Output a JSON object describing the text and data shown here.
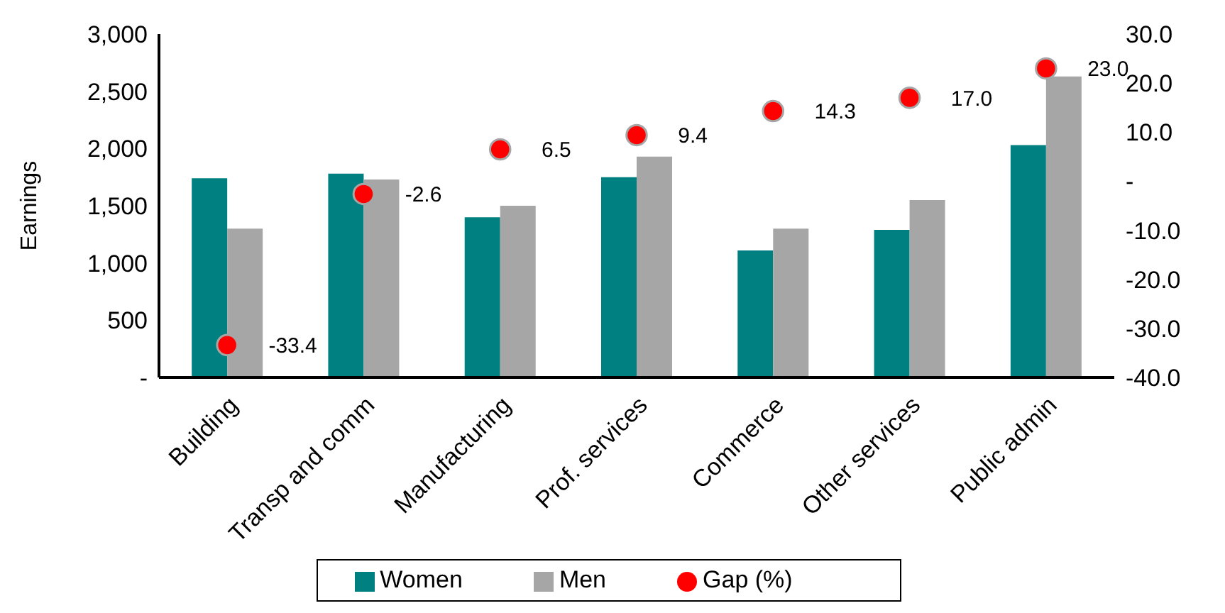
{
  "chart_data": {
    "type": "bar",
    "ylabel": "Earnings",
    "categories": [
      "Building",
      "Transp and comm",
      "Manufacturing",
      "Prof. services",
      "Commerce",
      "Other services",
      "Public admin"
    ],
    "series": [
      {
        "name": "Women",
        "color": "#008080",
        "values": [
          1740,
          1780,
          1400,
          1750,
          1110,
          1290,
          2030
        ]
      },
      {
        "name": "Men",
        "color": "#a6a6a6",
        "values": [
          1300,
          1730,
          1500,
          1930,
          1300,
          1550,
          2630
        ]
      },
      {
        "name": "Gap (%)",
        "type": "scatter",
        "axis": "y2",
        "color": "#ff0000",
        "values": [
          -33.4,
          -2.6,
          6.5,
          9.4,
          14.3,
          17.0,
          23.0
        ],
        "value_labels": [
          "-33.4",
          "-2.6",
          "6.5",
          "9.4",
          "14.3",
          "17.0",
          "23.0"
        ]
      }
    ],
    "ylim": [
      0,
      3000
    ],
    "yticks": [
      {
        "value": 0,
        "label": "-"
      },
      {
        "value": 500,
        "label": "500"
      },
      {
        "value": 1000,
        "label": "1,000"
      },
      {
        "value": 1500,
        "label": "1,500"
      },
      {
        "value": 2000,
        "label": "2,000"
      },
      {
        "value": 2500,
        "label": "2,500"
      },
      {
        "value": 3000,
        "label": "3,000"
      }
    ],
    "y2lim": [
      -40,
      30
    ],
    "y2ticks": [
      {
        "value": -40,
        "label": "-40.0"
      },
      {
        "value": -30,
        "label": "-30.0"
      },
      {
        "value": -20,
        "label": "-20.0"
      },
      {
        "value": -10,
        "label": "-10.0"
      },
      {
        "value": 0,
        "label": "-"
      },
      {
        "value": 10,
        "label": "10.0"
      },
      {
        "value": 20,
        "label": "20.0"
      },
      {
        "value": 30,
        "label": "30.0"
      }
    ],
    "legend": "bottom"
  }
}
